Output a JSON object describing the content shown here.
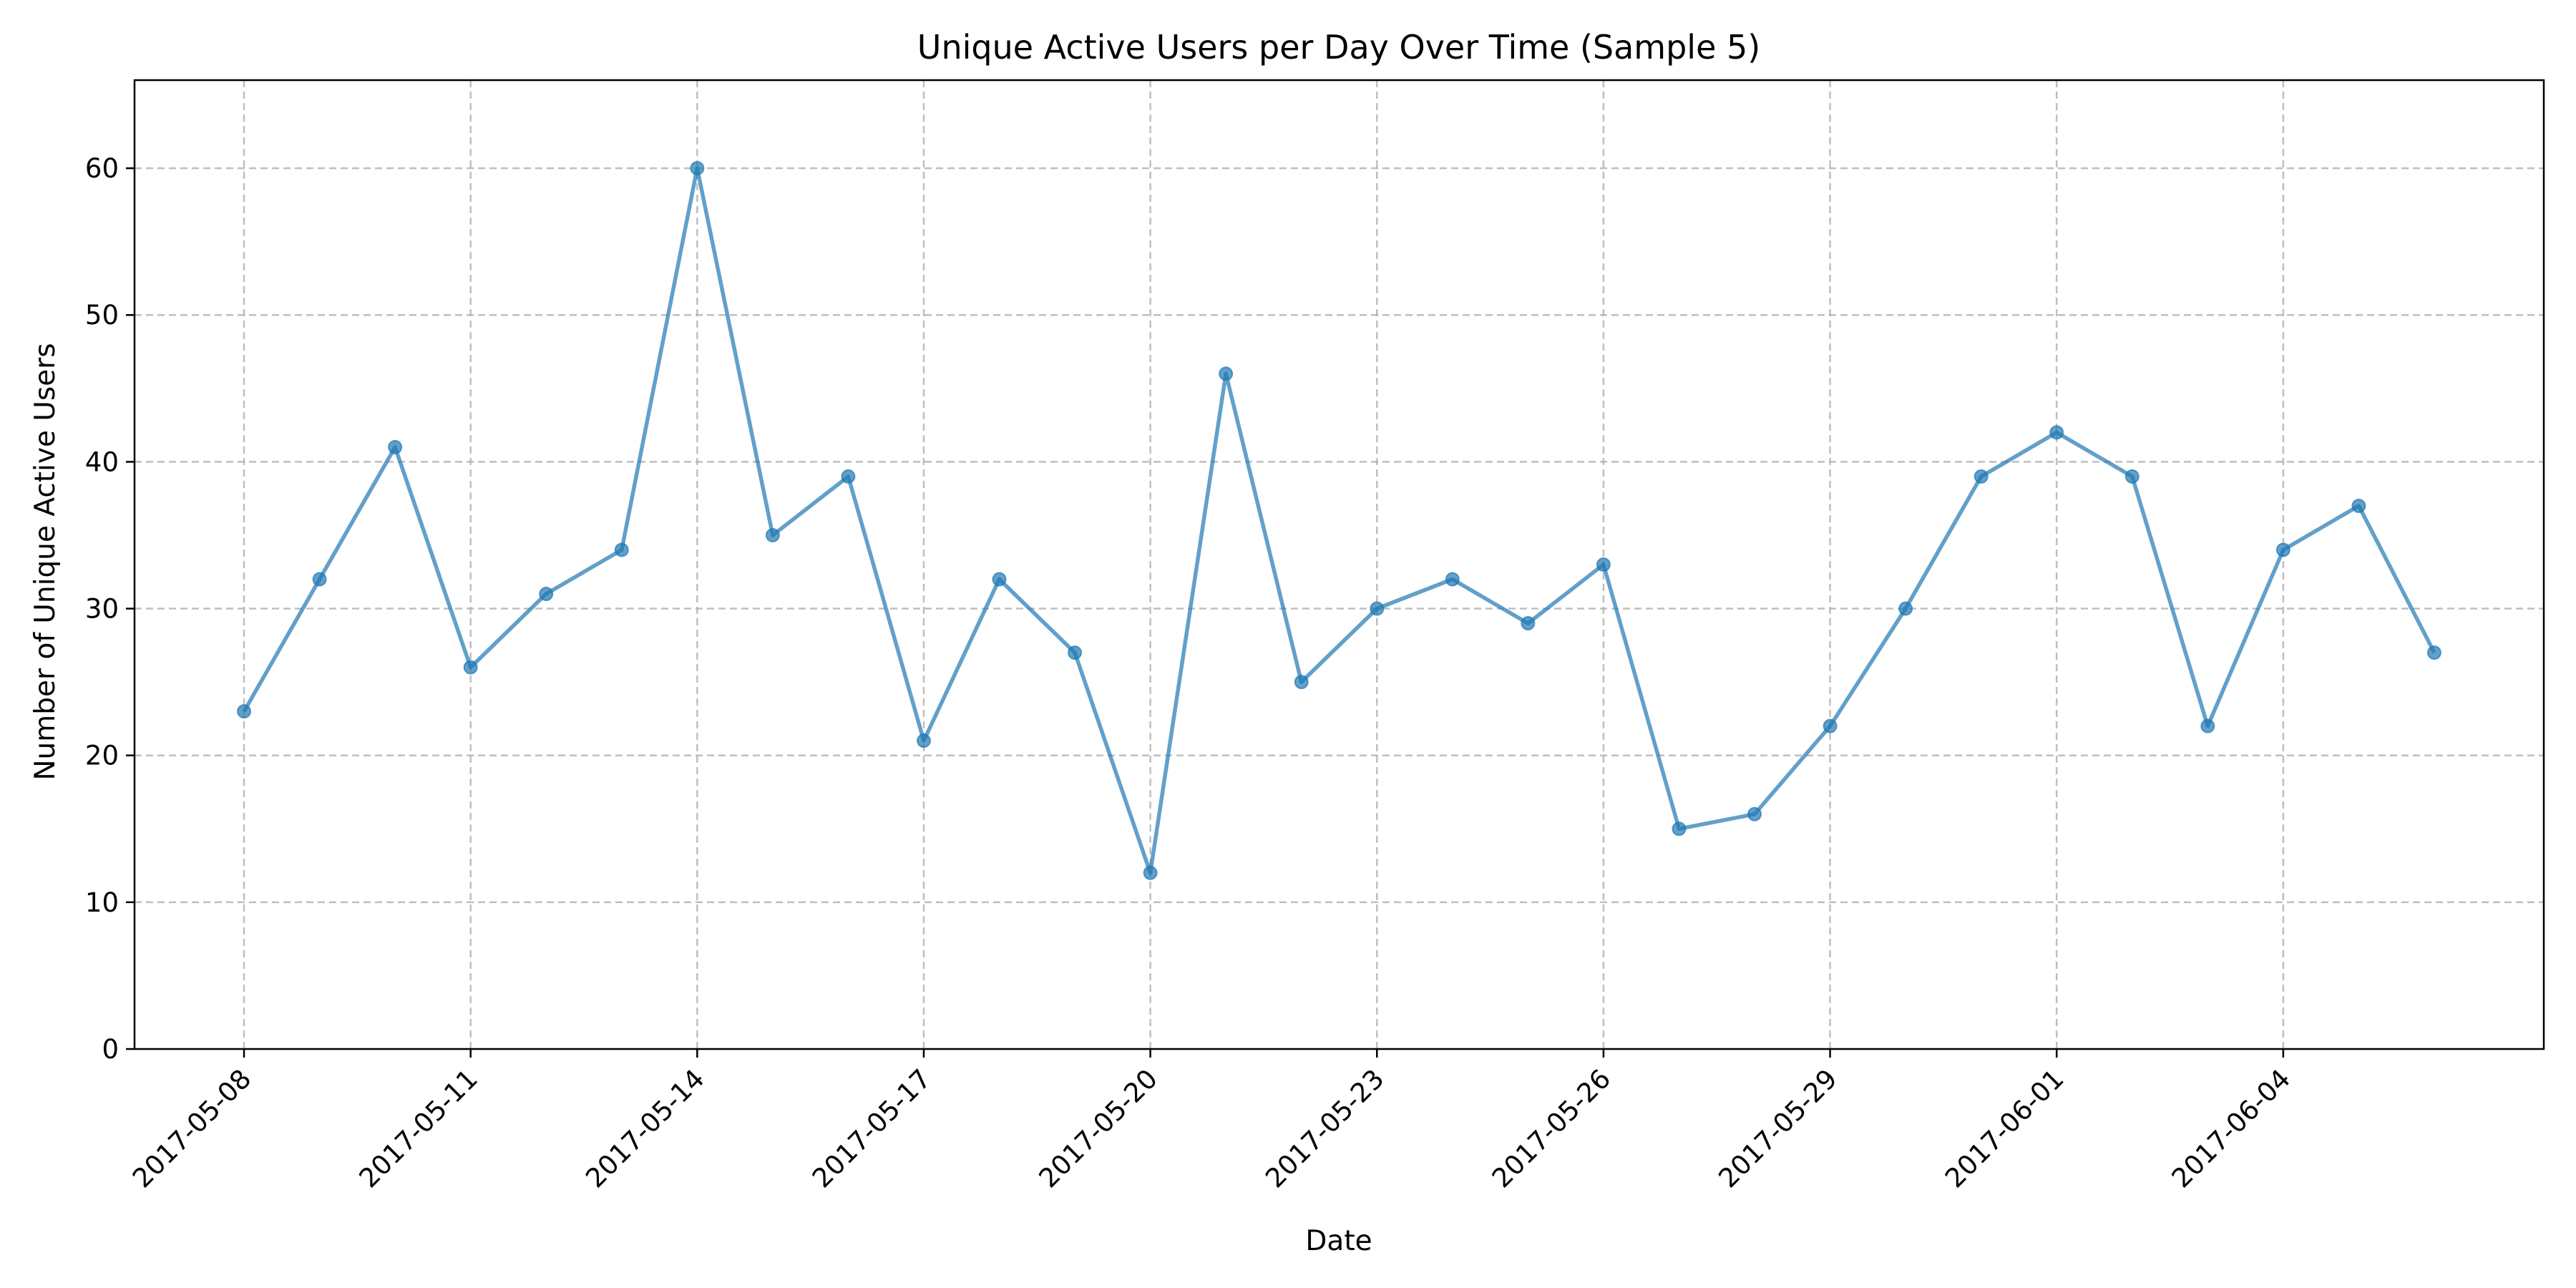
{
  "chart_data": {
    "type": "line",
    "title": "Unique Active Users per Day Over Time (Sample 5)",
    "xlabel": "Date",
    "ylabel": "Number of Unique Active Users",
    "ylim": [
      0,
      66
    ],
    "y_ticks": [
      0,
      10,
      20,
      30,
      40,
      50,
      60
    ],
    "x_tick_labels": [
      "2017-05-08",
      "2017-05-11",
      "2017-05-14",
      "2017-05-17",
      "2017-05-20",
      "2017-05-23",
      "2017-05-26",
      "2017-05-29",
      "2017-06-01",
      "2017-06-04"
    ],
    "grid": true,
    "color": "#1f77b4",
    "series": [
      {
        "x": [
          "2017-05-08",
          "2017-05-09",
          "2017-05-10",
          "2017-05-11",
          "2017-05-12",
          "2017-05-13",
          "2017-05-14",
          "2017-05-15",
          "2017-05-16",
          "2017-05-17",
          "2017-05-18",
          "2017-05-19",
          "2017-05-20",
          "2017-05-21",
          "2017-05-22",
          "2017-05-23",
          "2017-05-24",
          "2017-05-25",
          "2017-05-26",
          "2017-05-27",
          "2017-05-28",
          "2017-05-29",
          "2017-05-30",
          "2017-05-31",
          "2017-06-01",
          "2017-06-02",
          "2017-06-03",
          "2017-06-04",
          "2017-06-05",
          "2017-06-06"
        ],
        "values": [
          23,
          32,
          41,
          26,
          31,
          34,
          60,
          35,
          39,
          21,
          32,
          27,
          12,
          46,
          25,
          30,
          32,
          29,
          33,
          15,
          16,
          22,
          30,
          39,
          42,
          39,
          22,
          34,
          37,
          27
        ]
      }
    ]
  }
}
